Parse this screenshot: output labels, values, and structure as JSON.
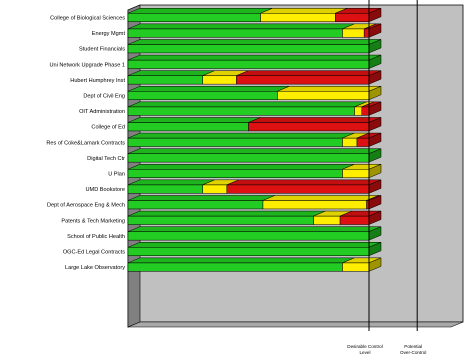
{
  "chart_data": {
    "type": "bar",
    "orientation": "horizontal",
    "stacked": true,
    "style": "3d",
    "categories": [
      "College of Biological Sciences",
      "Energy Mgmt",
      "Student Financials",
      "Uni Network Upgrade Phase 1",
      "Hubert Humphrey Inst",
      "Dept of Civil Eng",
      "OIT Administration",
      "College of Ed",
      "Res of Coke&Lamark Contracts",
      "Digital Tech Ctr",
      "U Plan",
      "UMD Bookstore",
      "Dept of Aerospace Eng & Mech",
      "Patents & Tech Marketing",
      "School of Public Health",
      "OGC-Ed Legal Contracts",
      "Large Lake Observatory"
    ],
    "series": [
      {
        "color": "#22cc22",
        "values": [
          55,
          89,
          100,
          100,
          31,
          62,
          94,
          50,
          89,
          100,
          89,
          31,
          56,
          77,
          100,
          100,
          89
        ]
      },
      {
        "color": "#ffee00",
        "values": [
          31,
          9,
          0,
          0,
          14,
          38,
          3,
          0,
          6,
          0,
          11,
          10,
          43,
          11,
          0,
          0,
          11
        ]
      },
      {
        "color": "#dd1111",
        "values": [
          14,
          2,
          0,
          0,
          55,
          0,
          3,
          50,
          5,
          0,
          0,
          59,
          1,
          12,
          0,
          0,
          0
        ]
      }
    ],
    "xlim": [
      0,
      100
    ],
    "reference_lines": [
      {
        "label": "Desirable Control Level",
        "value": 100
      },
      {
        "label": "Potential Over-Control",
        "value": 120
      }
    ],
    "colors": {
      "plot_bg": "#c0c0c0",
      "wall_left": "#808080",
      "floor": "#a8a8a8",
      "ref_line": "#000000"
    }
  }
}
